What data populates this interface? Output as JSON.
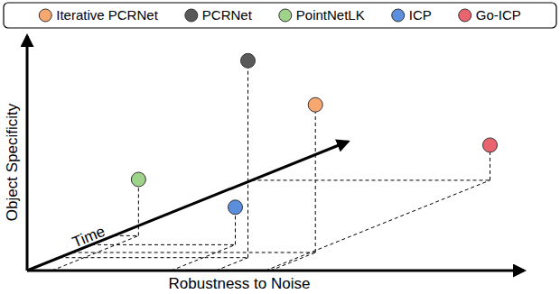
{
  "chart_data": {
    "type": "scatter3d",
    "x_label": "Robustness to Noise",
    "y_label": "Object Specificity",
    "z_label": "Time",
    "xlim": [
      0,
      10
    ],
    "ylim": [
      0,
      10
    ],
    "zlim": [
      0,
      10
    ],
    "tick_labels": false,
    "legend": "top",
    "marker": "circle",
    "series": [
      {
        "name": "Iterative PCRNet",
        "color": "#f7a870",
        "x": [
          4.9
        ],
        "values": [
          6.3
        ],
        "z": [
          1.4
        ]
      },
      {
        "name": "PCRNet",
        "color": "#595959",
        "x": [
          3.8
        ],
        "values": [
          8.4
        ],
        "z": [
          1.0
        ]
      },
      {
        "name": "PointNetLK",
        "color": "#9fd38c",
        "x": [
          0.5
        ],
        "values": [
          2.4
        ],
        "z": [
          2.7
        ]
      },
      {
        "name": "ICP",
        "color": "#5b8fde",
        "x": [
          2.9
        ],
        "values": [
          1.6
        ],
        "z": [
          2.0
        ]
      },
      {
        "name": "Go-ICP",
        "color": "#ea6470",
        "x": [
          4.8
        ],
        "values": [
          1.5
        ],
        "z": [
          7.0
        ]
      }
    ]
  }
}
